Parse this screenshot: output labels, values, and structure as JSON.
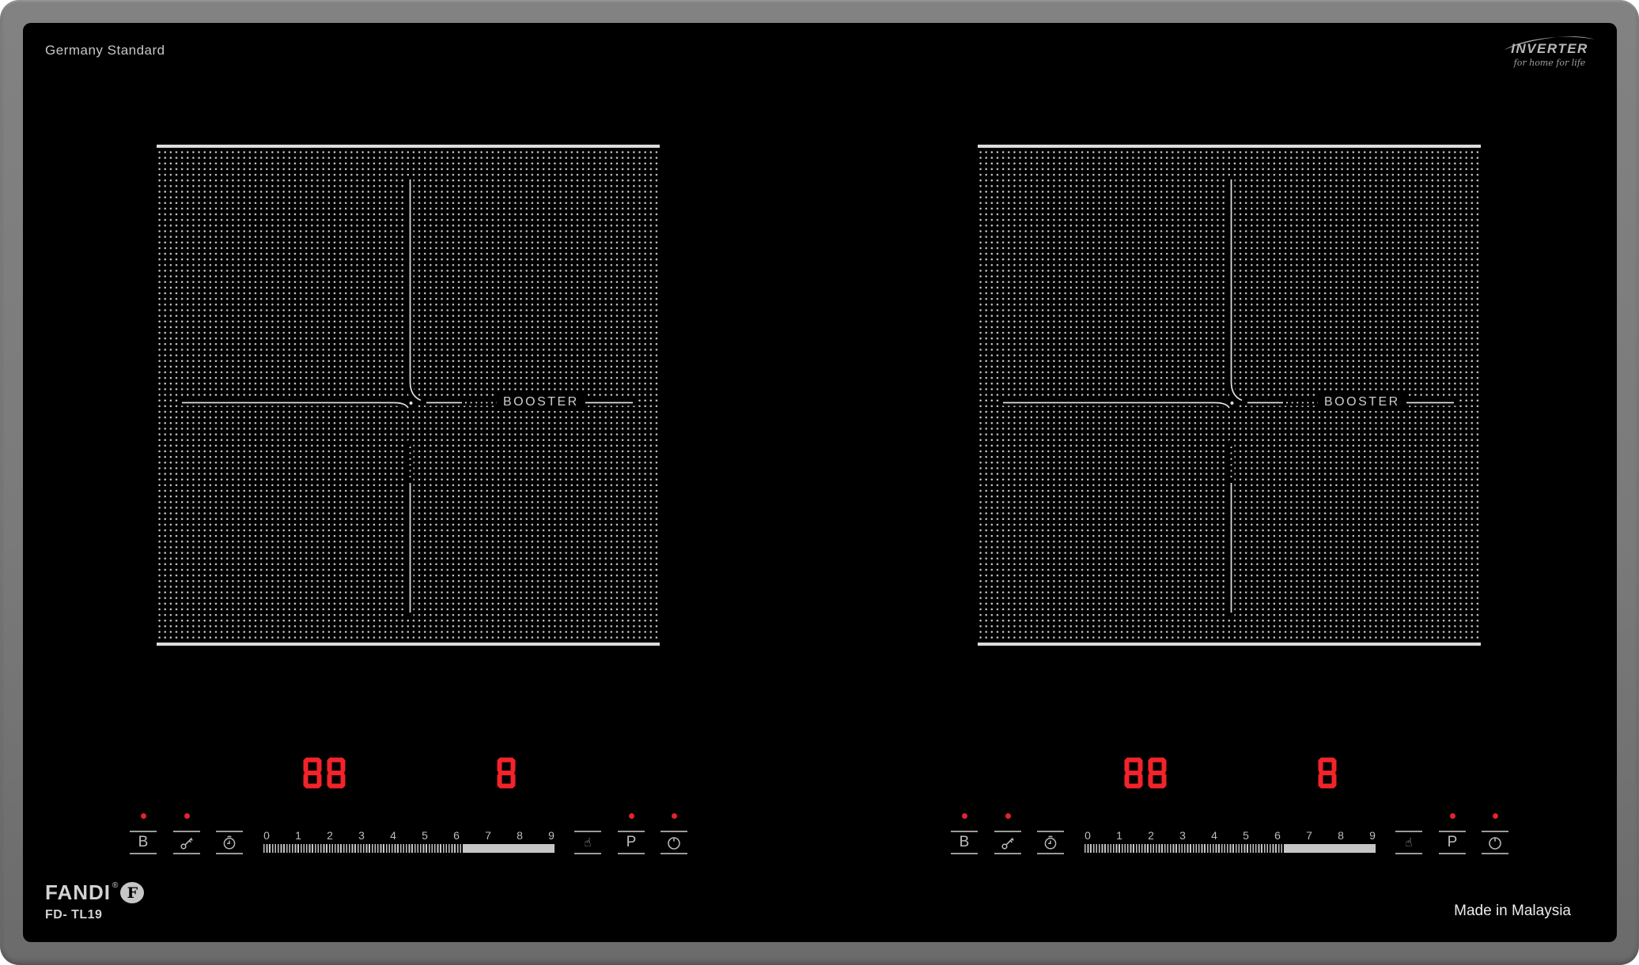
{
  "header": {
    "standard_label": "Germany Standard",
    "inverter": {
      "name": "INVERTER",
      "tagline": "for home for life"
    }
  },
  "zones": [
    {
      "booster_label": "BOOSTER",
      "display": {
        "timer": "88",
        "power_level": "8"
      },
      "indicator_lights": [
        "above-booster",
        "above-lock",
        "above-program",
        "above-power"
      ],
      "buttons": [
        {
          "name": "booster-button",
          "label": "B"
        },
        {
          "name": "lock-button",
          "icon": "key-lock-icon"
        },
        {
          "name": "timer-button",
          "icon": "timer-clock-icon"
        },
        {
          "name": "touch-slide-button",
          "icon": "touch-finger-icon",
          "glyph": "☝"
        },
        {
          "name": "program-button",
          "label": "P"
        },
        {
          "name": "power-button",
          "icon": "power-icon"
        }
      ],
      "slider_labels": [
        "0",
        "1",
        "2",
        "3",
        "4",
        "5",
        "6",
        "7",
        "8",
        "9"
      ]
    },
    {
      "booster_label": "BOOSTER",
      "display": {
        "timer": "88",
        "power_level": "8"
      },
      "indicator_lights": [
        "above-booster",
        "above-lock",
        "above-program",
        "above-power"
      ],
      "buttons": [
        {
          "name": "booster-button",
          "label": "B"
        },
        {
          "name": "lock-button",
          "icon": "key-lock-icon"
        },
        {
          "name": "timer-button",
          "icon": "timer-clock-icon"
        },
        {
          "name": "touch-slide-button",
          "icon": "touch-finger-icon",
          "glyph": "☝"
        },
        {
          "name": "program-button",
          "label": "P"
        },
        {
          "name": "power-button",
          "icon": "power-icon"
        }
      ],
      "slider_labels": [
        "0",
        "1",
        "2",
        "3",
        "4",
        "5",
        "6",
        "7",
        "8",
        "9"
      ]
    }
  ],
  "footer": {
    "brand": "FANDI",
    "reg_mark": "®",
    "logo_letter": "F",
    "model": "FD- TL19",
    "made_in": "Made in Malaysia"
  },
  "colors": {
    "frame_gray": "#7a7a7a",
    "glass_black": "#000000",
    "led_red": "#e5232b",
    "display_red": "#f2232a",
    "panel_gray": "#c6c6c6"
  }
}
